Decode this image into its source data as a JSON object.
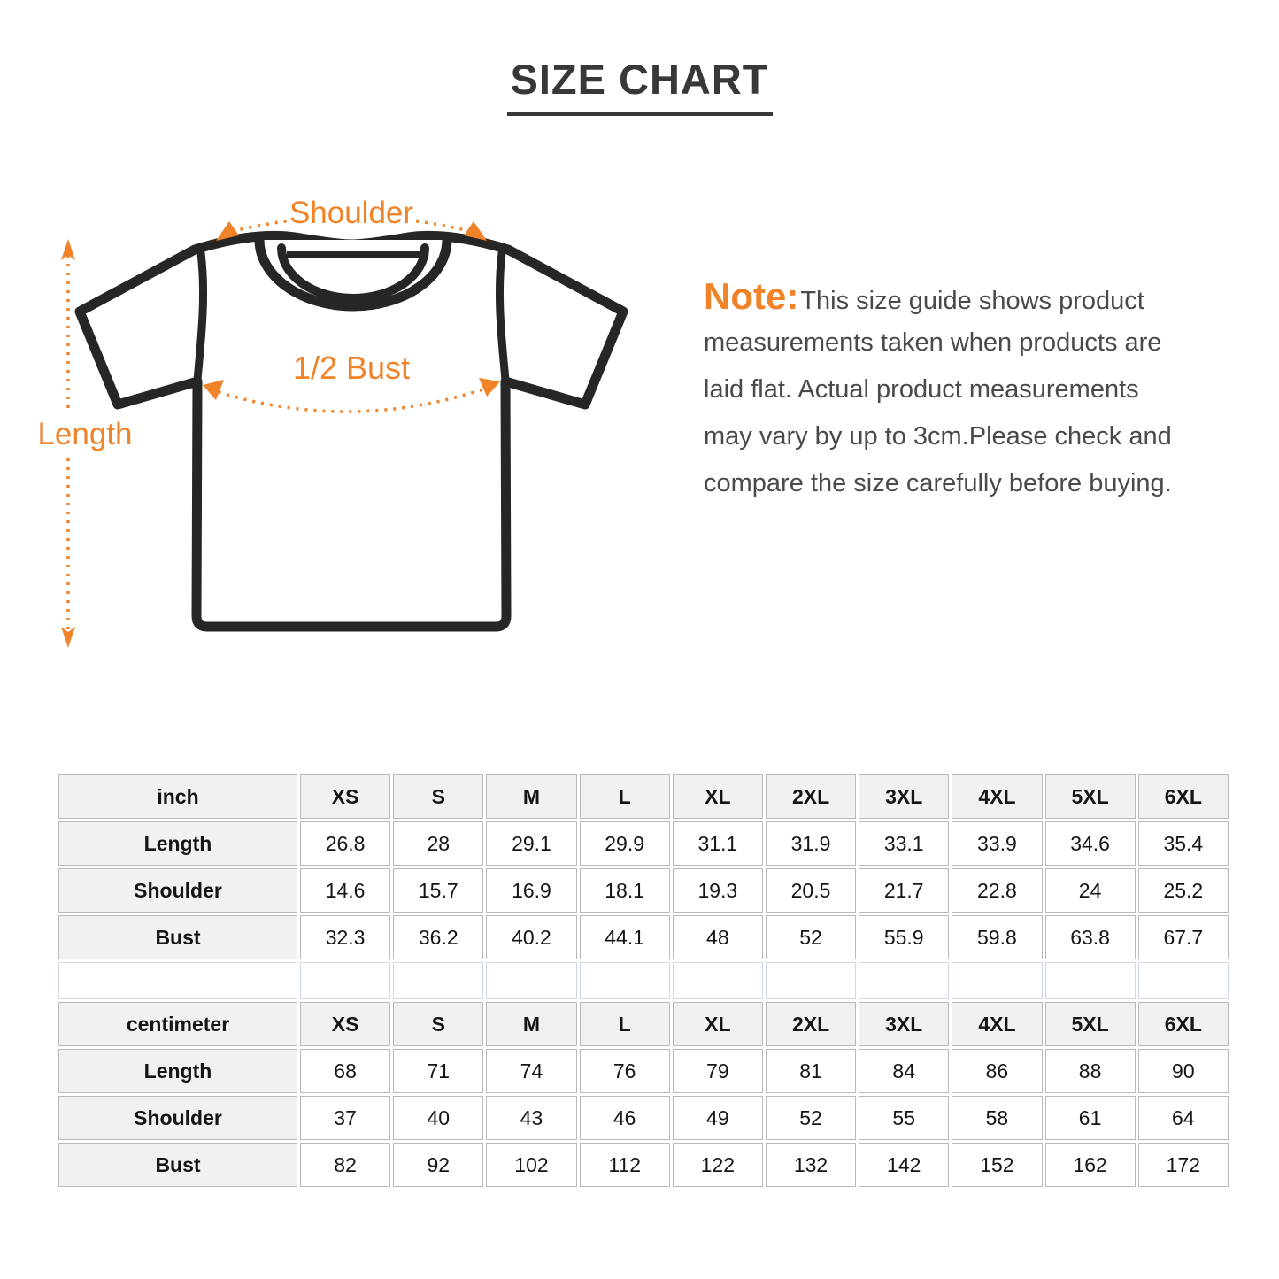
{
  "title": "SIZE CHART",
  "diagram": {
    "labels": {
      "shoulder": "Shoulder",
      "bust": "1/2 Bust",
      "length": "Length"
    },
    "accent_color": "#F08228",
    "outline_color": "#262626"
  },
  "note": {
    "label": "Note:",
    "lines": [
      "This size guide shows product",
      "measurements taken when products are",
      "laid flat. Actual product measurements",
      "may vary by up to 3cm.Please check and",
      "compare the size carefully before buying."
    ]
  },
  "size_tables": {
    "columns": [
      "XS",
      "S",
      "M",
      "L",
      "XL",
      "2XL",
      "3XL",
      "4XL",
      "5XL",
      "6XL"
    ],
    "sections": [
      {
        "unit": "inch",
        "rows": [
          {
            "label": "Length",
            "values": [
              "26.8",
              "28",
              "29.1",
              "29.9",
              "31.1",
              "31.9",
              "33.1",
              "33.9",
              "34.6",
              "35.4"
            ]
          },
          {
            "label": "Shoulder",
            "values": [
              "14.6",
              "15.7",
              "16.9",
              "18.1",
              "19.3",
              "20.5",
              "21.7",
              "22.8",
              "24",
              "25.2"
            ]
          },
          {
            "label": "Bust",
            "values": [
              "32.3",
              "36.2",
              "40.2",
              "44.1",
              "48",
              "52",
              "55.9",
              "59.8",
              "63.8",
              "67.7"
            ]
          }
        ]
      },
      {
        "unit": "centimeter",
        "rows": [
          {
            "label": "Length",
            "values": [
              "68",
              "71",
              "74",
              "76",
              "79",
              "81",
              "84",
              "86",
              "88",
              "90"
            ]
          },
          {
            "label": "Shoulder",
            "values": [
              "37",
              "40",
              "43",
              "46",
              "49",
              "52",
              "55",
              "58",
              "61",
              "64"
            ]
          },
          {
            "label": "Bust",
            "values": [
              "82",
              "92",
              "102",
              "112",
              "122",
              "132",
              "142",
              "152",
              "162",
              "172"
            ]
          }
        ]
      }
    ]
  }
}
